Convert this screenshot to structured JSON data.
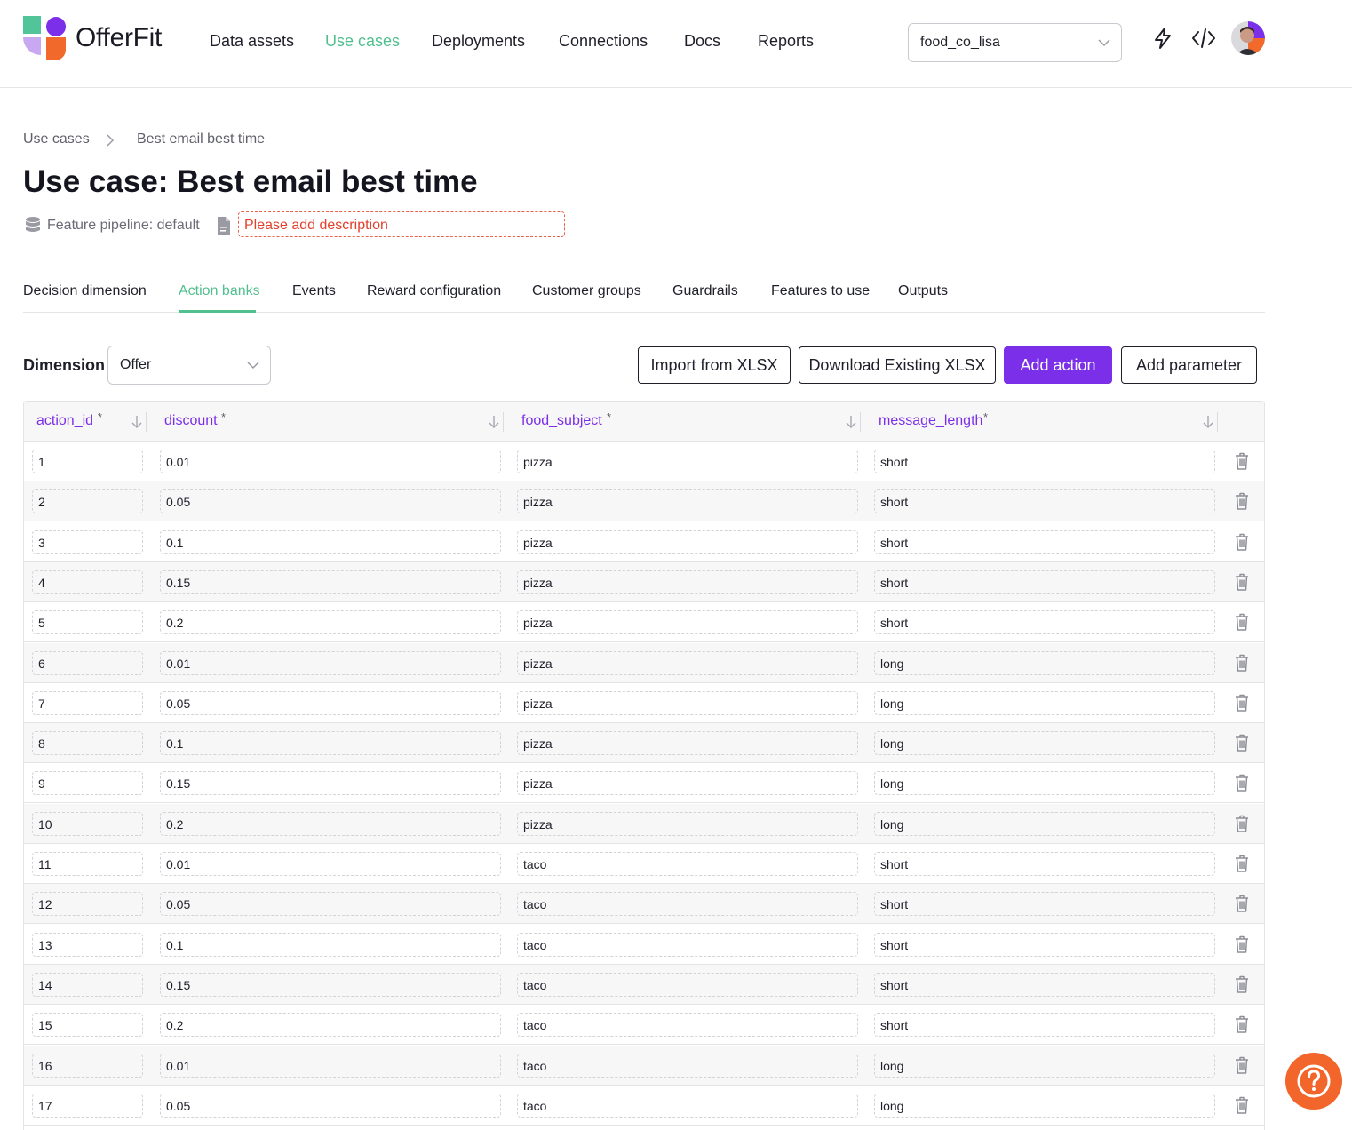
{
  "brand": {
    "name": "OfferFit"
  },
  "nav": [
    "Data assets",
    "Use cases",
    "Deployments",
    "Connections",
    "Docs",
    "Reports"
  ],
  "org_select": {
    "value": "food_co_lisa"
  },
  "header_icons": [
    "lightning-icon",
    "code-icon"
  ],
  "breadcrumb": {
    "root": "Use cases",
    "current": "Best email best time"
  },
  "title": "Use case: Best email best time",
  "meta": {
    "pipeline": "Feature pipeline: default",
    "description_placeholder": "Please add description"
  },
  "tabs": [
    "Decision dimension",
    "Action banks",
    "Events",
    "Reward configuration",
    "Customer groups",
    "Guardrails",
    "Features to use",
    "Outputs"
  ],
  "active_tab": "Action banks",
  "toolbar": {
    "dimension_label": "Dimension",
    "dimension_value": "Offer",
    "import_label": "Import from XLSX",
    "download_label": "Download Existing XLSX",
    "add_action_label": "Add action",
    "add_parameter_label": "Add parameter"
  },
  "table": {
    "columns": [
      {
        "key": "action_id",
        "label": "action_id",
        "required": "*"
      },
      {
        "key": "discount",
        "label": "discount",
        "required": "*"
      },
      {
        "key": "food_subject",
        "label": "food_subject",
        "required": "*"
      },
      {
        "key": "message_length",
        "label": "message_length",
        "required": "*"
      }
    ],
    "rows": [
      [
        "1",
        "0.01",
        "pizza",
        "short"
      ],
      [
        "2",
        "0.05",
        "pizza",
        "short"
      ],
      [
        "3",
        "0.1",
        "pizza",
        "short"
      ],
      [
        "4",
        "0.15",
        "pizza",
        "short"
      ],
      [
        "5",
        "0.2",
        "pizza",
        "short"
      ],
      [
        "6",
        "0.01",
        "pizza",
        "long"
      ],
      [
        "7",
        "0.05",
        "pizza",
        "long"
      ],
      [
        "8",
        "0.1",
        "pizza",
        "long"
      ],
      [
        "9",
        "0.15",
        "pizza",
        "long"
      ],
      [
        "10",
        "0.2",
        "pizza",
        "long"
      ],
      [
        "11",
        "0.01",
        "taco",
        "short"
      ],
      [
        "12",
        "0.05",
        "taco",
        "short"
      ],
      [
        "13",
        "0.1",
        "taco",
        "short"
      ],
      [
        "14",
        "0.15",
        "taco",
        "short"
      ],
      [
        "15",
        "0.2",
        "taco",
        "short"
      ],
      [
        "16",
        "0.01",
        "taco",
        "long"
      ],
      [
        "17",
        "0.05",
        "taco",
        "long"
      ]
    ]
  },
  "colors": {
    "accent_purple": "#7b2fe8",
    "accent_green": "#52bf8f",
    "error_red": "#e2402d",
    "help_orange": "#f2662b"
  }
}
